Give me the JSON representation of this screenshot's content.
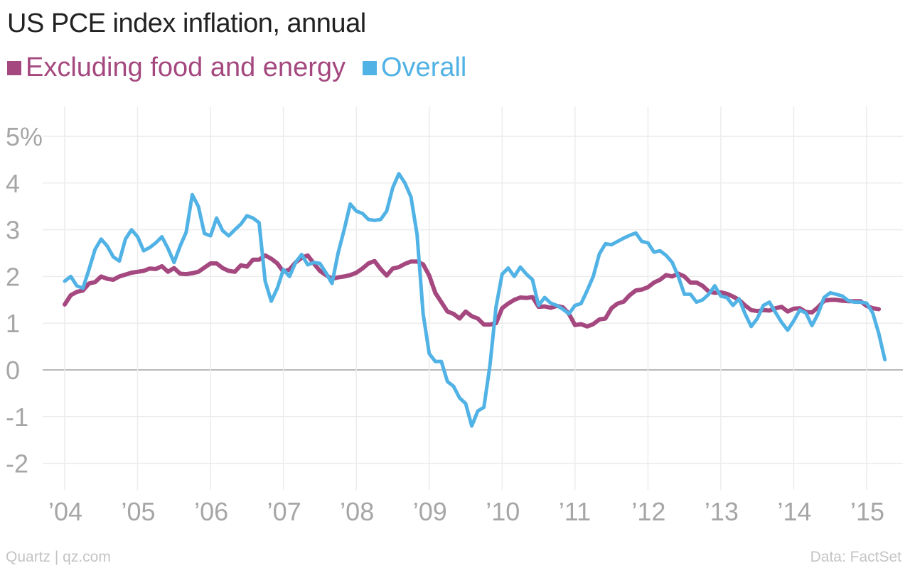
{
  "chart_data": {
    "type": "line",
    "title": "US PCE index inflation, annual",
    "xlabel": "",
    "ylabel": "",
    "x_start_year": 2004,
    "x_step_months": 1,
    "xlim": [
      2003.5,
      2015.4
    ],
    "ylim": [
      -2.6,
      5.6
    ],
    "x_ticks": [
      2004,
      2005,
      2006,
      2007,
      2008,
      2009,
      2010,
      2011,
      2012,
      2013,
      2014,
      2015
    ],
    "x_tick_labels": [
      "’04",
      "’05",
      "’06",
      "’07",
      "’08",
      "’09",
      "’10",
      "’11",
      "’12",
      "’13",
      "’14",
      "’15"
    ],
    "y_ticks": [
      5,
      4,
      3,
      2,
      1,
      0,
      -1,
      -2
    ],
    "y_tick_labels": [
      "5%",
      "4",
      "3",
      "2",
      "1",
      "0",
      "-1",
      "-2"
    ],
    "grid": true,
    "legend_position": "top-left",
    "series": [
      {
        "name": "Excluding food and energy",
        "color": "#a4487f",
        "values": [
          1.4,
          1.6,
          1.67,
          1.7,
          1.85,
          1.88,
          2.0,
          1.95,
          1.93,
          2.0,
          2.04,
          2.08,
          2.1,
          2.12,
          2.17,
          2.16,
          2.22,
          2.1,
          2.18,
          2.06,
          2.05,
          2.07,
          2.1,
          2.19,
          2.28,
          2.28,
          2.18,
          2.12,
          2.1,
          2.24,
          2.21,
          2.36,
          2.36,
          2.45,
          2.38,
          2.28,
          2.1,
          2.15,
          2.3,
          2.4,
          2.45,
          2.28,
          2.12,
          2.03,
          1.95,
          1.98,
          2.0,
          2.03,
          2.08,
          2.17,
          2.28,
          2.33,
          2.16,
          2.02,
          2.17,
          2.2,
          2.27,
          2.32,
          2.32,
          2.26,
          2.02,
          1.65,
          1.45,
          1.25,
          1.2,
          1.1,
          1.25,
          1.15,
          1.1,
          0.97,
          0.97,
          1.0,
          1.32,
          1.42,
          1.5,
          1.55,
          1.54,
          1.56,
          1.35,
          1.36,
          1.33,
          1.37,
          1.34,
          1.2,
          0.96,
          0.98,
          0.93,
          0.98,
          1.08,
          1.1,
          1.32,
          1.42,
          1.46,
          1.6,
          1.7,
          1.72,
          1.77,
          1.87,
          1.93,
          2.03,
          2.0,
          2.06,
          2.0,
          1.87,
          1.87,
          1.8,
          1.68,
          1.65,
          1.66,
          1.63,
          1.57,
          1.5,
          1.38,
          1.28,
          1.26,
          1.28,
          1.27,
          1.32,
          1.35,
          1.25,
          1.31,
          1.32,
          1.24,
          1.23,
          1.34,
          1.48,
          1.5,
          1.5,
          1.48,
          1.47,
          1.47,
          1.47,
          1.37,
          1.32,
          1.3
        ]
      },
      {
        "name": "Overall",
        "color": "#51b2e5",
        "values": [
          1.9,
          2.0,
          1.8,
          1.75,
          2.15,
          2.58,
          2.8,
          2.65,
          2.42,
          2.33,
          2.8,
          3.0,
          2.85,
          2.55,
          2.62,
          2.72,
          2.85,
          2.6,
          2.3,
          2.65,
          2.95,
          3.75,
          3.5,
          2.92,
          2.87,
          3.25,
          2.98,
          2.87,
          3.0,
          3.12,
          3.3,
          3.25,
          3.15,
          1.9,
          1.47,
          1.75,
          2.15,
          2.0,
          2.3,
          2.47,
          2.25,
          2.3,
          2.28,
          2.08,
          1.85,
          2.5,
          3.0,
          3.55,
          3.4,
          3.35,
          3.22,
          3.2,
          3.22,
          3.4,
          3.9,
          4.2,
          4.0,
          3.7,
          2.9,
          1.2,
          0.35,
          0.18,
          0.18,
          -0.25,
          -0.35,
          -0.6,
          -0.72,
          -1.2,
          -0.88,
          -0.8,
          0.1,
          1.35,
          2.05,
          2.18,
          2.0,
          2.2,
          2.05,
          1.93,
          1.38,
          1.55,
          1.43,
          1.38,
          1.3,
          1.2,
          1.38,
          1.42,
          1.7,
          2.0,
          2.48,
          2.7,
          2.68,
          2.75,
          2.82,
          2.88,
          2.93,
          2.75,
          2.72,
          2.52,
          2.55,
          2.45,
          2.3,
          2.0,
          1.62,
          1.62,
          1.45,
          1.5,
          1.62,
          1.8,
          1.58,
          1.55,
          1.38,
          1.52,
          1.2,
          0.93,
          1.1,
          1.38,
          1.45,
          1.23,
          1.02,
          0.85,
          1.05,
          1.28,
          1.22,
          0.95,
          1.2,
          1.55,
          1.65,
          1.62,
          1.58,
          1.48,
          1.45,
          1.45,
          1.43,
          1.22,
          0.78,
          0.22
        ]
      }
    ]
  },
  "footer": {
    "source_left": "Quartz | qz.com",
    "source_right": "Data: FactSet"
  }
}
